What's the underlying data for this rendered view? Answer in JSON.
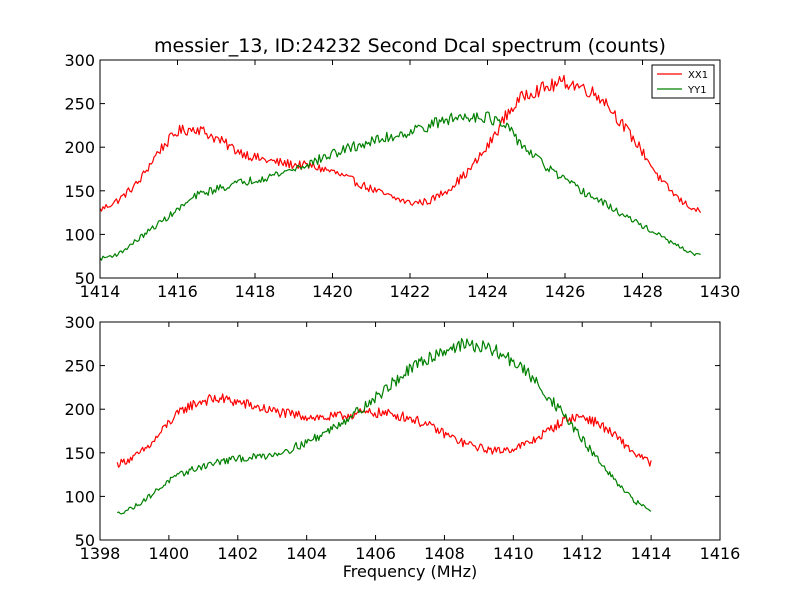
{
  "figure": {
    "title": "messier_13, ID:24232 Second Dcal spectrum (counts)"
  },
  "chart_data": [
    {
      "type": "line",
      "title": "messier_13, ID:24232 Second Dcal spectrum (counts)",
      "xlabel": "",
      "ylabel": "",
      "xlim": [
        1414,
        1430
      ],
      "ylim": [
        50,
        300
      ],
      "xticks": [
        "1414",
        "1416",
        "1418",
        "1420",
        "1422",
        "1424",
        "1426",
        "1428",
        "1430"
      ],
      "yticks": [
        "50",
        "100",
        "150",
        "200",
        "250",
        "300"
      ],
      "grid": false,
      "legend": {
        "placement": "top-right",
        "entries": [
          "XX1",
          "YY1"
        ]
      },
      "series": [
        {
          "name": "XX1",
          "color": "#ff0000",
          "x": [
            1414.0,
            1414.5,
            1415.0,
            1415.5,
            1416.0,
            1416.5,
            1417.0,
            1417.5,
            1418.0,
            1418.5,
            1419.0,
            1419.5,
            1420.0,
            1420.5,
            1421.0,
            1421.5,
            1422.0,
            1422.5,
            1423.0,
            1423.5,
            1424.0,
            1424.5,
            1425.0,
            1425.5,
            1426.0,
            1426.5,
            1427.0,
            1427.5,
            1428.0,
            1428.5,
            1429.0,
            1429.5
          ],
          "values": [
            128,
            140,
            160,
            195,
            218,
            222,
            210,
            197,
            188,
            183,
            180,
            178,
            172,
            162,
            152,
            143,
            136,
            138,
            152,
            172,
            200,
            238,
            262,
            268,
            275,
            268,
            255,
            225,
            195,
            160,
            138,
            125
          ]
        },
        {
          "name": "YY1",
          "color": "#008000",
          "x": [
            1414.0,
            1414.5,
            1415.0,
            1415.5,
            1416.0,
            1416.5,
            1417.0,
            1417.5,
            1418.0,
            1418.5,
            1419.0,
            1419.5,
            1420.0,
            1420.5,
            1421.0,
            1421.5,
            1422.0,
            1422.5,
            1423.0,
            1423.5,
            1424.0,
            1424.5,
            1425.0,
            1425.5,
            1426.0,
            1426.5,
            1427.0,
            1427.5,
            1428.0,
            1428.5,
            1429.0,
            1429.5
          ],
          "values": [
            72,
            78,
            95,
            112,
            128,
            145,
            152,
            158,
            163,
            168,
            175,
            183,
            192,
            200,
            206,
            212,
            218,
            225,
            232,
            236,
            235,
            222,
            198,
            178,
            162,
            148,
            136,
            122,
            110,
            97,
            84,
            75
          ]
        }
      ]
    },
    {
      "type": "line",
      "title": "",
      "xlabel": "Frequency (MHz)",
      "ylabel": "",
      "xlim": [
        1398,
        1416
      ],
      "ylim": [
        50,
        300
      ],
      "xticks": [
        "1398",
        "1400",
        "1402",
        "1404",
        "1406",
        "1408",
        "1410",
        "1412",
        "1414",
        "1416"
      ],
      "yticks": [
        "50",
        "100",
        "150",
        "200",
        "250",
        "300"
      ],
      "grid": false,
      "series": [
        {
          "color": "#ff0000",
          "x": [
            1398.5,
            1399.0,
            1399.5,
            1400.0,
            1400.5,
            1401.0,
            1401.5,
            1402.0,
            1402.5,
            1403.0,
            1403.5,
            1404.0,
            1404.5,
            1405.0,
            1405.5,
            1406.0,
            1406.5,
            1407.0,
            1407.5,
            1408.0,
            1408.5,
            1409.0,
            1409.5,
            1410.0,
            1410.5,
            1411.0,
            1411.5,
            1412.0,
            1412.5,
            1413.0,
            1413.5,
            1414.0
          ],
          "values": [
            137,
            145,
            160,
            185,
            202,
            210,
            212,
            208,
            203,
            198,
            194,
            192,
            190,
            192,
            195,
            196,
            194,
            190,
            182,
            172,
            162,
            156,
            152,
            155,
            162,
            175,
            188,
            192,
            183,
            168,
            150,
            138
          ]
        },
        {
          "color": "#008000",
          "x": [
            1398.5,
            1399.0,
            1399.5,
            1400.0,
            1400.5,
            1401.0,
            1401.5,
            1402.0,
            1402.5,
            1403.0,
            1403.5,
            1404.0,
            1404.5,
            1405.0,
            1405.5,
            1406.0,
            1406.5,
            1407.0,
            1407.5,
            1408.0,
            1408.5,
            1409.0,
            1409.5,
            1410.0,
            1410.5,
            1411.0,
            1411.5,
            1412.0,
            1412.5,
            1413.0,
            1413.5,
            1414.0
          ],
          "values": [
            80,
            88,
            102,
            118,
            128,
            135,
            140,
            143,
            145,
            148,
            154,
            162,
            172,
            185,
            198,
            213,
            230,
            245,
            258,
            268,
            274,
            272,
            266,
            255,
            238,
            215,
            192,
            165,
            140,
            115,
            95,
            84
          ]
        }
      ]
    }
  ]
}
